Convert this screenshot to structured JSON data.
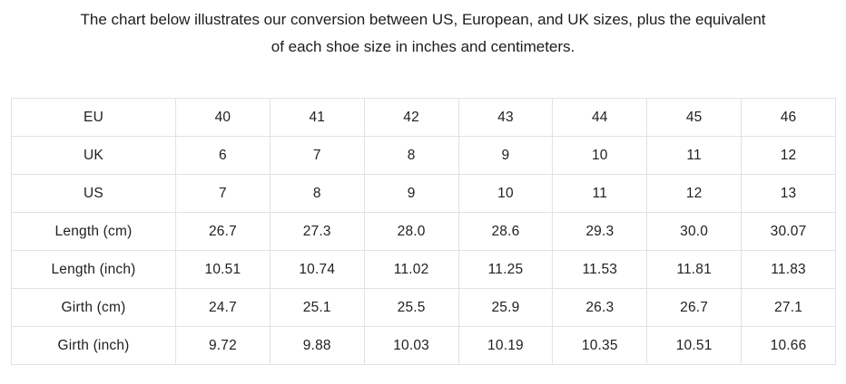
{
  "heading": {
    "line1": "The chart below illustrates our conversion between US, European, and UK sizes, plus the equivalent",
    "line2": "of each shoe size in inches and centimeters."
  },
  "colors": {
    "background": "#ffffff",
    "table_border": "#e2e2e2",
    "text": "#202124"
  },
  "chart_data": {
    "type": "table",
    "title": "Shoe size conversion chart (US / European / UK sizes with inch and centimeter equivalents)",
    "rows": [
      {
        "label": "EU",
        "values": [
          "40",
          "41",
          "42",
          "43",
          "44",
          "45",
          "46"
        ]
      },
      {
        "label": "UK",
        "values": [
          "6",
          "7",
          "8",
          "9",
          "10",
          "11",
          "12"
        ]
      },
      {
        "label": "US",
        "values": [
          "7",
          "8",
          "9",
          "10",
          "11",
          "12",
          "13"
        ]
      },
      {
        "label": "Length (cm)",
        "values": [
          "26.7",
          "27.3",
          "28.0",
          "28.6",
          "29.3",
          "30.0",
          "30.07"
        ]
      },
      {
        "label": "Length (inch)",
        "values": [
          "10.51",
          "10.74",
          "11.02",
          "11.25",
          "11.53",
          "11.81",
          "11.83"
        ]
      },
      {
        "label": "Girth (cm)",
        "values": [
          "24.7",
          "25.1",
          "25.5",
          "25.9",
          "26.3",
          "26.7",
          "27.1"
        ]
      },
      {
        "label": "Girth (inch)",
        "values": [
          "9.72",
          "9.88",
          "10.03",
          "10.19",
          "10.35",
          "10.51",
          "10.66"
        ]
      }
    ]
  }
}
